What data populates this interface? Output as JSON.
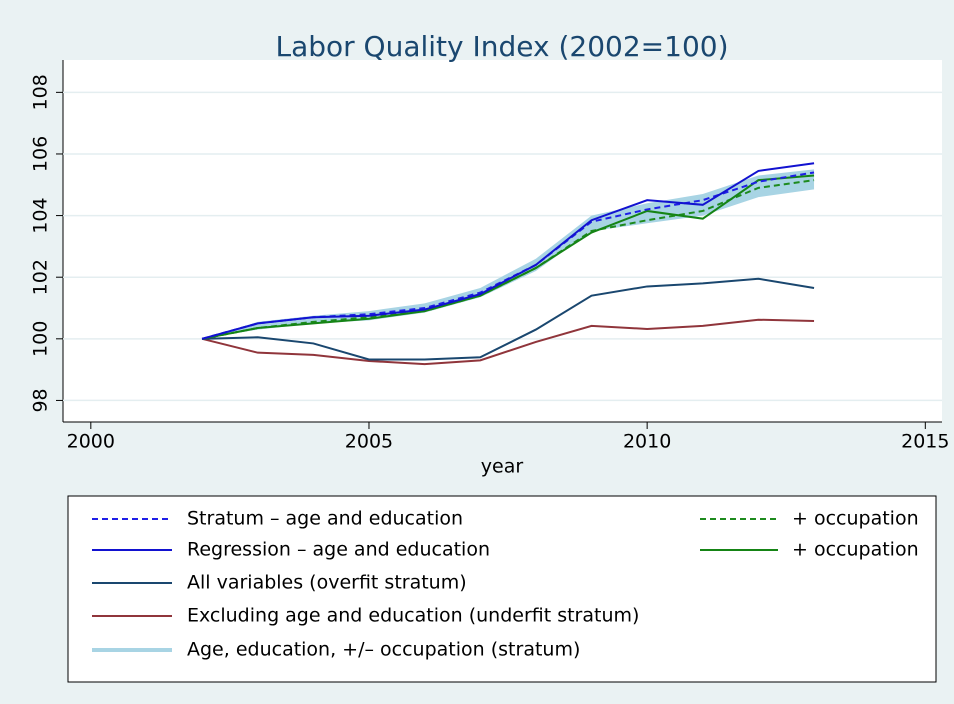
{
  "chart_data": {
    "type": "line",
    "title": "Labor Quality Index (2002=100)",
    "x_label": "year",
    "x": [
      2002,
      2003,
      2004,
      2005,
      2006,
      2007,
      2008,
      2009,
      2010,
      2011,
      2012,
      2013
    ],
    "xlim": [
      1999.5,
      2015.3
    ],
    "xticks": [
      2000,
      2005,
      2010,
      2015
    ],
    "ylim": [
      97.3,
      109.05
    ],
    "yticks": [
      98,
      100,
      102,
      104,
      106,
      108
    ],
    "grid": true,
    "series": [
      {
        "name": "Stratum – age and education",
        "color": "#1f1fe6",
        "dash": true,
        "values": [
          100,
          100.5,
          100.7,
          100.8,
          101.0,
          101.5,
          102.4,
          103.8,
          104.2,
          104.5,
          105.1,
          105.4
        ]
      },
      {
        "name": "Regression – age and education",
        "color": "#1212d0",
        "dash": false,
        "values": [
          100,
          100.5,
          100.7,
          100.75,
          100.95,
          101.45,
          102.4,
          103.85,
          104.5,
          104.35,
          105.45,
          105.7
        ]
      },
      {
        "name": "+ occupation",
        "color": "#1d8a1d",
        "dash": true,
        "values": [
          100,
          100.35,
          100.55,
          100.7,
          100.9,
          101.4,
          102.3,
          103.5,
          103.85,
          104.15,
          104.9,
          105.15
        ]
      },
      {
        "name": "+ occupation",
        "color": "#158415",
        "dash": false,
        "values": [
          100,
          100.35,
          100.5,
          100.65,
          100.9,
          101.4,
          102.3,
          103.45,
          104.15,
          103.9,
          105.15,
          105.3
        ]
      },
      {
        "name": "All variables (overfit stratum)",
        "color": "#1a476f",
        "dash": false,
        "values": [
          100,
          100.05,
          99.85,
          99.33,
          99.33,
          99.4,
          100.3,
          101.4,
          101.7,
          101.8,
          101.95,
          101.65
        ]
      },
      {
        "name": "Excluding age and education (underfit stratum)",
        "color": "#90353b",
        "dash": false,
        "values": [
          100,
          99.55,
          99.48,
          99.28,
          99.18,
          99.3,
          99.9,
          100.42,
          100.32,
          100.42,
          100.62,
          100.58
        ]
      },
      {
        "name": "Age, education, +/– occupation (stratum)",
        "color": "#a8d4e4",
        "band": true,
        "lower": [
          100,
          100.3,
          100.5,
          100.6,
          100.85,
          101.35,
          102.2,
          103.5,
          103.75,
          104.0,
          104.6,
          104.85
        ],
        "upper": [
          100,
          100.55,
          100.75,
          100.9,
          101.15,
          101.65,
          102.6,
          104.0,
          104.4,
          104.7,
          105.3,
          105.5
        ]
      }
    ]
  }
}
